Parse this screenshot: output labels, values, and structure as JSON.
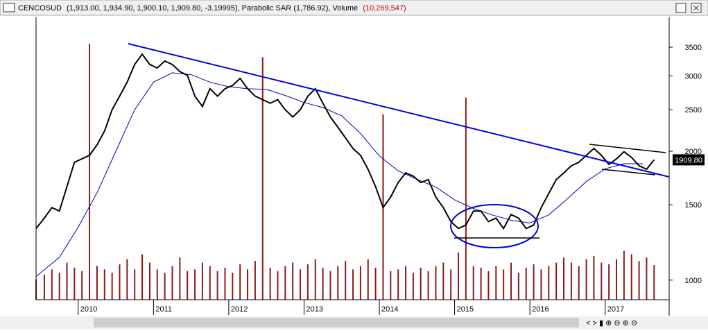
{
  "header": {
    "name": "CENCOSUD",
    "ohlc": "(1,913.00, 1,934.90, 1,900.10, 1,909.80, -3.19995)",
    "sar_label": "Parabolic SAR (1,786.92)",
    "volume_label": "Volume",
    "volume_value": "(10,269,547)"
  },
  "chart_data": {
    "type": "line",
    "log_scale": true,
    "xlim": [
      2009.44,
      2017.85
    ],
    "xticks": [
      2010,
      2011,
      2012,
      2013,
      2014,
      2015,
      2016,
      2017
    ],
    "ylim": [
      900,
      4110
    ],
    "yticks": [
      1000,
      1500,
      2000,
      2500,
      3000,
      3500
    ],
    "last_price": {
      "value": 1909.8,
      "label": "1909.80"
    },
    "x": [
      2009.44,
      2009.55,
      2009.65,
      2009.75,
      2009.85,
      2009.95,
      2010.05,
      2010.15,
      2010.25,
      2010.35,
      2010.45,
      2010.55,
      2010.65,
      2010.75,
      2010.85,
      2010.95,
      2011.05,
      2011.15,
      2011.25,
      2011.35,
      2011.45,
      2011.55,
      2011.65,
      2011.75,
      2011.85,
      2011.95,
      2012.05,
      2012.15,
      2012.25,
      2012.35,
      2012.45,
      2012.55,
      2012.65,
      2012.75,
      2012.85,
      2012.95,
      2013.05,
      2013.15,
      2013.25,
      2013.35,
      2013.45,
      2013.55,
      2013.65,
      2013.75,
      2013.85,
      2013.95,
      2014.05,
      2014.15,
      2014.25,
      2014.35,
      2014.45,
      2014.55,
      2014.65,
      2014.75,
      2014.85,
      2014.95,
      2015.05,
      2015.15,
      2015.25,
      2015.35,
      2015.45,
      2015.55,
      2015.65,
      2015.75,
      2015.85,
      2015.95,
      2016.05,
      2016.15,
      2016.25,
      2016.35,
      2016.45,
      2016.55,
      2016.65,
      2016.75,
      2016.85,
      2016.95,
      2017.05,
      2017.15,
      2017.25,
      2017.35,
      2017.45,
      2017.55,
      2017.65
    ],
    "series": [
      {
        "name": "CENCOSUD",
        "color": "#000000",
        "values": [
          1320,
          1396,
          1477,
          1450,
          1653,
          1885,
          1920,
          1957,
          2070,
          2230,
          2500,
          2690,
          2900,
          3190,
          3370,
          3190,
          3130,
          3250,
          3190,
          3070,
          3010,
          2690,
          2545,
          2800,
          2690,
          2800,
          2850,
          2960,
          2800,
          2690,
          2640,
          2590,
          2640,
          2500,
          2405,
          2500,
          2690,
          2800,
          2590,
          2405,
          2275,
          2150,
          2030,
          1957,
          1815,
          1653,
          1477,
          1563,
          1690,
          1780,
          1750,
          1690,
          1717,
          1563,
          1477,
          1370,
          1320,
          1345,
          1450,
          1450,
          1370,
          1396,
          1320,
          1423,
          1396,
          1320,
          1345,
          1477,
          1593,
          1717,
          1780,
          1850,
          1885,
          1957,
          2030,
          1957,
          1863,
          1920,
          1995,
          1935,
          1850,
          1815,
          1909.8
        ]
      },
      {
        "name": "Volume",
        "color": "#8b1a1a",
        "values": [
          6000000,
          7500000,
          9000000,
          8000000,
          11000000,
          9500000,
          8500000,
          76000000,
          10000000,
          9000000,
          8000000,
          10500000,
          12000000,
          9000000,
          13500000,
          11000000,
          9000000,
          8000000,
          10000000,
          12500000,
          8500000,
          9000000,
          11000000,
          10000000,
          8500000,
          9500000,
          8000000,
          10500000,
          9000000,
          11500000,
          72000000,
          9500000,
          8500000,
          10000000,
          11000000,
          9000000,
          10500000,
          12000000,
          9500000,
          8500000,
          10000000,
          11500000,
          9000000,
          10000000,
          12000000,
          9500000,
          55000000,
          8500000,
          9000000,
          10000000,
          8000000,
          9500000,
          8500000,
          10000000,
          11000000,
          9000000,
          14000000,
          60000000,
          10000000,
          9500000,
          8500000,
          10000000,
          9000000,
          11000000,
          8000000,
          9500000,
          10500000,
          9000000,
          10000000,
          11000000,
          12500000,
          11000000,
          10000000,
          12000000,
          13000000,
          11000000,
          10500000,
          12000000,
          14500000,
          13500000,
          11500000,
          12500000,
          10269547
        ]
      }
    ],
    "moving_average": {
      "color": "#0000c0",
      "x": [
        2009.44,
        2009.75,
        2010.0,
        2010.25,
        2010.5,
        2010.75,
        2011.0,
        2011.25,
        2011.5,
        2011.75,
        2012.0,
        2012.25,
        2012.5,
        2012.75,
        2013.0,
        2013.25,
        2013.5,
        2013.75,
        2014.0,
        2014.25,
        2014.5,
        2014.75,
        2015.0,
        2015.25,
        2015.5,
        2015.75,
        2016.0,
        2016.25,
        2016.5,
        2016.75,
        2017.0,
        2017.25,
        2017.5
      ],
      "values": [
        1020,
        1130,
        1330,
        1600,
        2000,
        2500,
        2900,
        3050,
        3020,
        2900,
        2830,
        2800,
        2790,
        2700,
        2600,
        2530,
        2420,
        2200,
        1950,
        1800,
        1720,
        1650,
        1540,
        1470,
        1420,
        1380,
        1360,
        1420,
        1550,
        1700,
        1820,
        1870,
        1870
      ]
    }
  }
}
